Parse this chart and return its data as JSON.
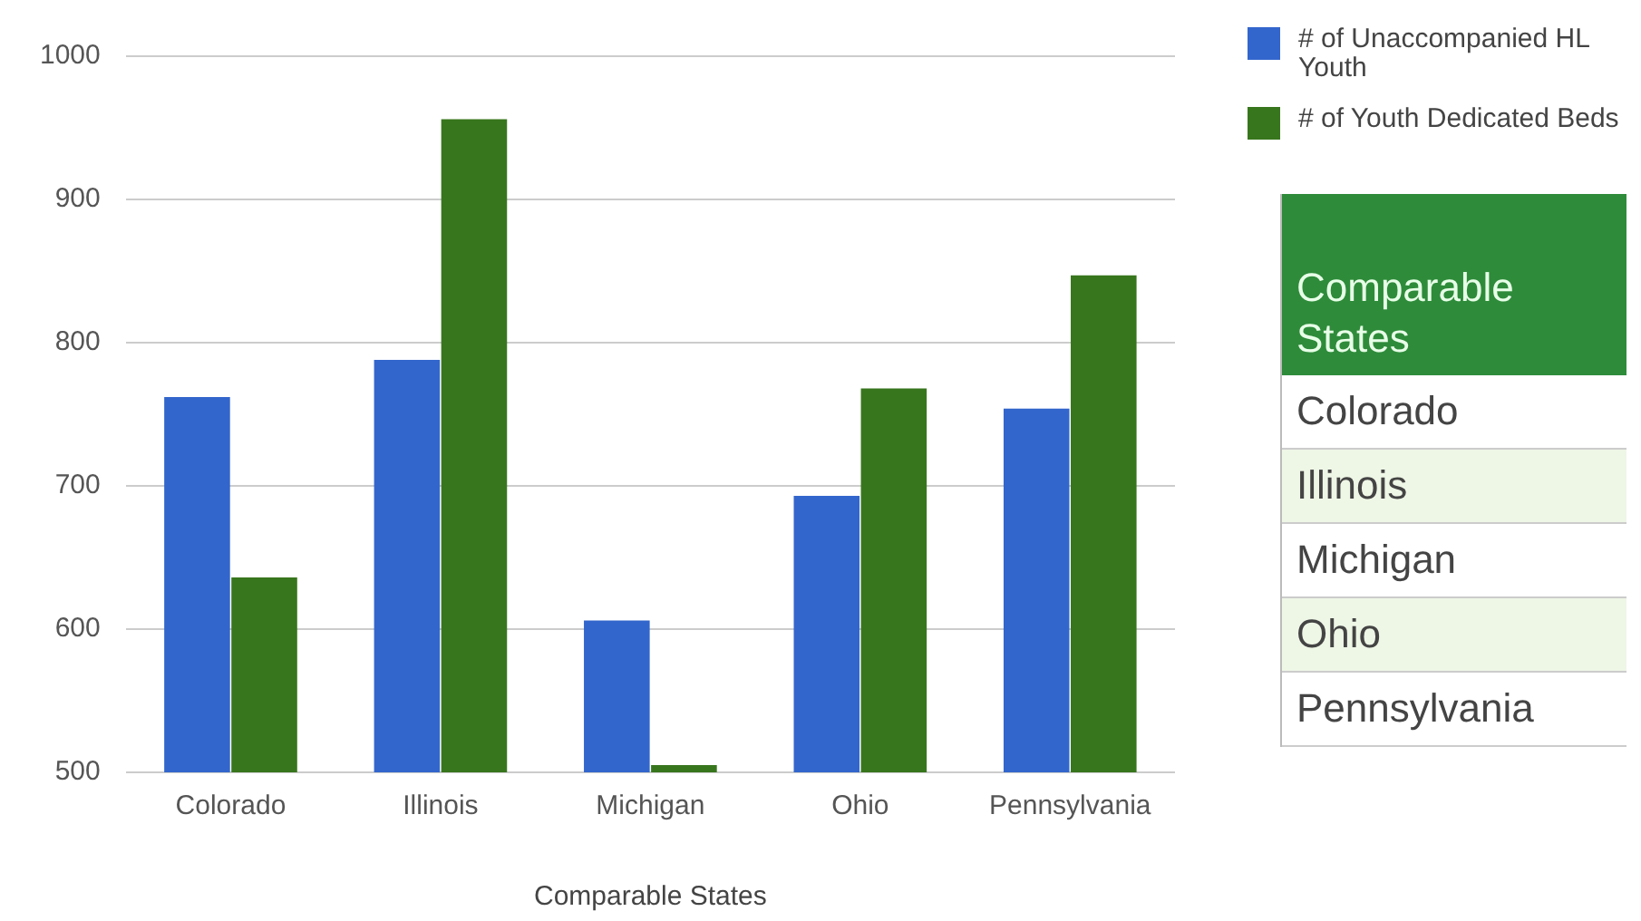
{
  "chart_data": [
    {
      "type": "bar",
      "xlabel": "Comparable States",
      "categories": [
        "Colorado",
        "Illinois",
        "Michigan",
        "Ohio",
        "Pennsylvania"
      ],
      "series": [
        {
          "name": "# of Unaccompanied HL Youth",
          "color": "#3366cc",
          "values": [
            762,
            788,
            606,
            693,
            754
          ]
        },
        {
          "name": "# of Youth Dedicated Beds",
          "color": "#38761d",
          "values": [
            636,
            956,
            505,
            768,
            847
          ]
        }
      ],
      "ylim": [
        500,
        1000
      ],
      "yticks": [
        500,
        600,
        700,
        800,
        900,
        1000
      ],
      "grid": "y",
      "legend": "top right"
    },
    {
      "type": "other",
      "title": "Comparable States",
      "annotations": [
        "Colorado",
        "Illinois",
        "Michigan",
        "Ohio",
        "Pennsylvania"
      ]
    }
  ]
}
